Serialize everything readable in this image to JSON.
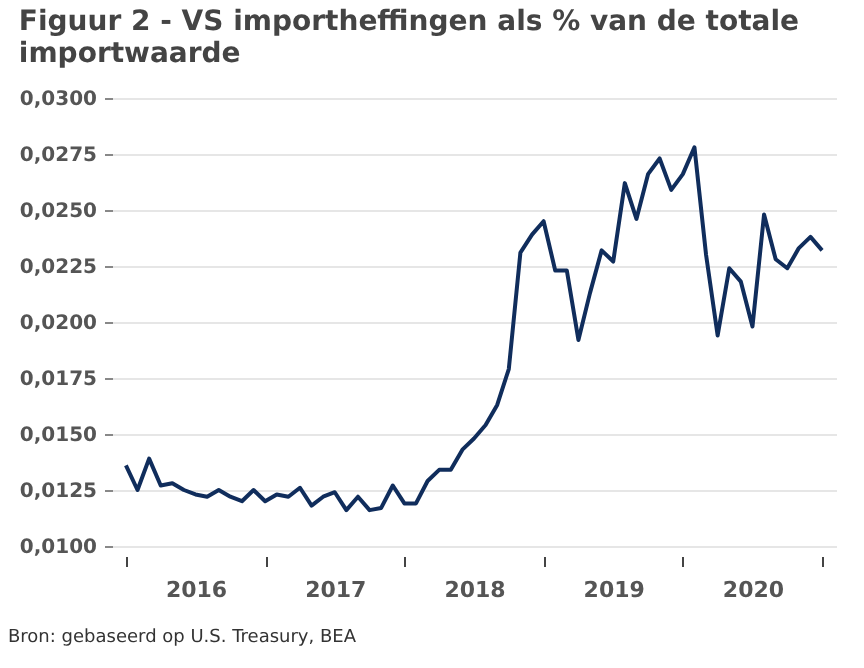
{
  "chart_data": {
    "type": "line",
    "title": [
      "Figuur 2 - VS importheffingen als % van de totale",
      "importwaarde"
    ],
    "annotations": [
      "Bron: gebaseerd op U.S. Treasury, BEA"
    ],
    "x": [
      2016,
      2016.0833,
      2016.1667,
      2016.25,
      2016.3333,
      2016.4167,
      2016.5,
      2016.5833,
      2016.6667,
      2016.75,
      2016.8333,
      2016.9167,
      2017,
      2017.0833,
      2017.1667,
      2017.25,
      2017.3333,
      2017.4167,
      2017.5,
      2017.5833,
      2017.6667,
      2017.75,
      2017.8333,
      2017.9167,
      2018,
      2018.0833,
      2018.1667,
      2018.25,
      2018.3333,
      2018.4167,
      2018.5,
      2018.5833,
      2018.6667,
      2018.75,
      2018.8333,
      2018.9167,
      2019,
      2019.0833,
      2019.1667,
      2019.25,
      2019.3333,
      2019.4167,
      2019.5,
      2019.5833,
      2019.6667,
      2019.75,
      2019.8333,
      2019.9167,
      2020,
      2020.0833,
      2020.1667,
      2020.25,
      2020.3333,
      2020.4167,
      2020.5,
      2020.5833,
      2020.6667,
      2020.75,
      2020.8333,
      2020.9167,
      2021
    ],
    "series": [
      {
        "color": "#102d5c",
        "values": [
          0.0136,
          0.0125,
          0.0139,
          0.0127,
          0.0128,
          0.0125,
          0.0123,
          0.0122,
          0.0125,
          0.0122,
          0.012,
          0.0125,
          0.012,
          0.0123,
          0.0122,
          0.0126,
          0.0118,
          0.0122,
          0.0124,
          0.0116,
          0.0122,
          0.0116,
          0.0117,
          0.0127,
          0.0119,
          0.0119,
          0.0129,
          0.0134,
          0.0134,
          0.0143,
          0.0148,
          0.0154,
          0.0163,
          0.0179,
          0.0231,
          0.0239,
          0.0245,
          0.0223,
          0.0223,
          0.0192,
          0.0213,
          0.0232,
          0.0227,
          0.0262,
          0.0246,
          0.0266,
          0.0273,
          0.0259,
          0.0266,
          0.0278,
          0.023,
          0.0194,
          0.0224,
          0.0218,
          0.0198,
          0.0248,
          0.0228,
          0.0224,
          0.0233,
          0.0238,
          0.0232
        ]
      }
    ],
    "xlim": [
      2015.9,
      2021.1
    ],
    "xticks": [
      {
        "value": 2016,
        "label": null
      },
      {
        "value": 2017,
        "label": null
      },
      {
        "value": 2018,
        "label": null
      },
      {
        "value": 2019,
        "label": null
      },
      {
        "value": 2020,
        "label": null
      },
      {
        "value": 2021,
        "label": null
      },
      {
        "value": 2016.5,
        "label": "2016"
      },
      {
        "value": 2017.5,
        "label": "2017"
      },
      {
        "value": 2018.5,
        "label": "2018"
      },
      {
        "value": 2019.5,
        "label": "2019"
      },
      {
        "value": 2020.5,
        "label": "2020"
      }
    ],
    "ylim": [
      0.01,
      0.03
    ],
    "yticks": [
      {
        "value": 0.01,
        "label": "0,0100"
      },
      {
        "value": 0.0125,
        "label": "0,0125"
      },
      {
        "value": 0.015,
        "label": "0,0150"
      },
      {
        "value": 0.0175,
        "label": "0,0175"
      },
      {
        "value": 0.02,
        "label": "0,0200"
      },
      {
        "value": 0.0225,
        "label": "0,0225"
      },
      {
        "value": 0.025,
        "label": "0,0250"
      },
      {
        "value": 0.0275,
        "label": "0,0275"
      },
      {
        "value": 0.03,
        "label": "0,0300"
      }
    ],
    "grid": "y",
    "legend": false,
    "marker": "none",
    "line_style": "solid"
  }
}
